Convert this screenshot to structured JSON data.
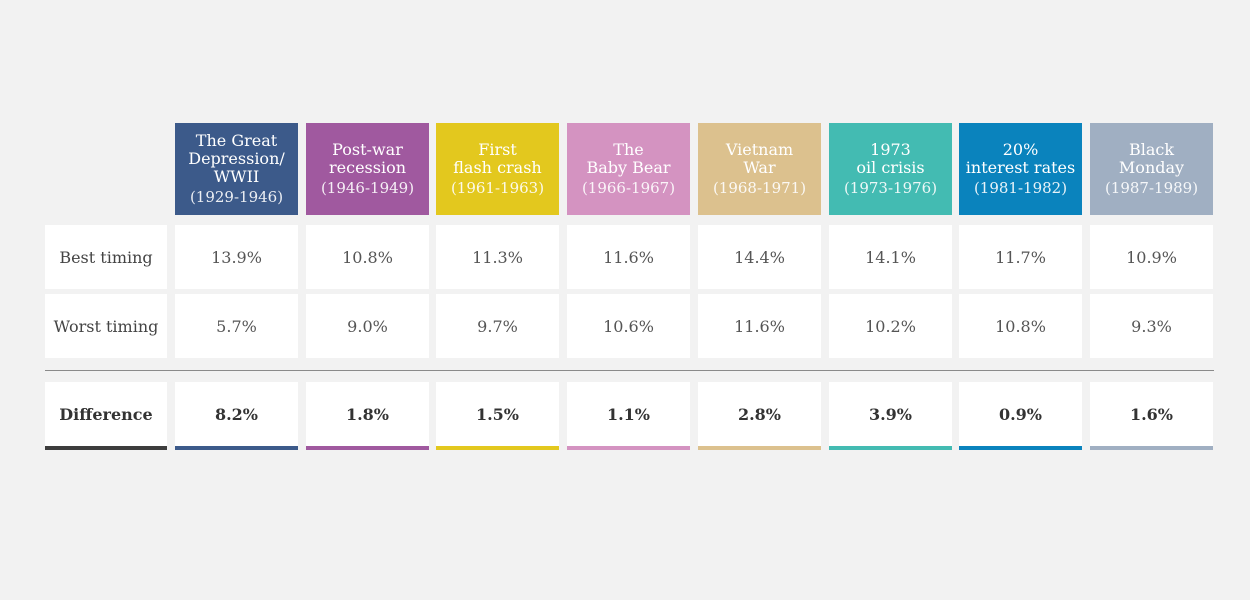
{
  "chart_data": {
    "type": "table",
    "row_labels": [
      "Best timing",
      "Worst timing",
      "Difference"
    ],
    "columns": [
      {
        "title": "The Great Depression/ WWII",
        "title_lines": [
          "The Great",
          "Depression/",
          "WWII"
        ],
        "period": "(1929-1946)",
        "color": "#3c5a8a",
        "best": "13.9%",
        "worst": "5.7%",
        "difference": "8.2%"
      },
      {
        "title": "Post-war recession",
        "title_lines": [
          "Post-war",
          "recession"
        ],
        "period": "(1946-1949)",
        "color": "#a0599f",
        "best": "10.8%",
        "worst": "9.0%",
        "difference": "1.8%"
      },
      {
        "title": "First flash crash",
        "title_lines": [
          "First",
          "flash crash"
        ],
        "period": "(1961-1963)",
        "color": "#e3c81e",
        "best": "11.3%",
        "worst": "9.7%",
        "difference": "1.5%"
      },
      {
        "title": "The Baby Bear",
        "title_lines": [
          "The",
          "Baby Bear"
        ],
        "period": "(1966-1967)",
        "color": "#d493c1",
        "best": "11.6%",
        "worst": "10.6%",
        "difference": "1.1%"
      },
      {
        "title": "Vietnam War",
        "title_lines": [
          "Vietnam",
          "War"
        ],
        "period": "(1968-1971)",
        "color": "#dcc18e",
        "best": "14.4%",
        "worst": "11.6%",
        "difference": "2.8%"
      },
      {
        "title": "1973 oil crisis",
        "title_lines": [
          "1973",
          "oil crisis"
        ],
        "period": "(1973-1976)",
        "color": "#43bbb2",
        "best": "14.1%",
        "worst": "10.2%",
        "difference": "3.9%"
      },
      {
        "title": "20% interest rates",
        "title_lines": [
          "20%",
          "interest rates"
        ],
        "period": "(1981-1982)",
        "color": "#0a83bd",
        "best": "11.7%",
        "worst": "10.8%",
        "difference": "0.9%"
      },
      {
        "title": "Black Monday",
        "title_lines": [
          "Black",
          "Monday"
        ],
        "period": "(1987-1989)",
        "color": "#a0afc2",
        "best": "10.9%",
        "worst": "9.3%",
        "difference": "1.6%"
      }
    ],
    "label_bar_color": "#3d3d3d"
  }
}
